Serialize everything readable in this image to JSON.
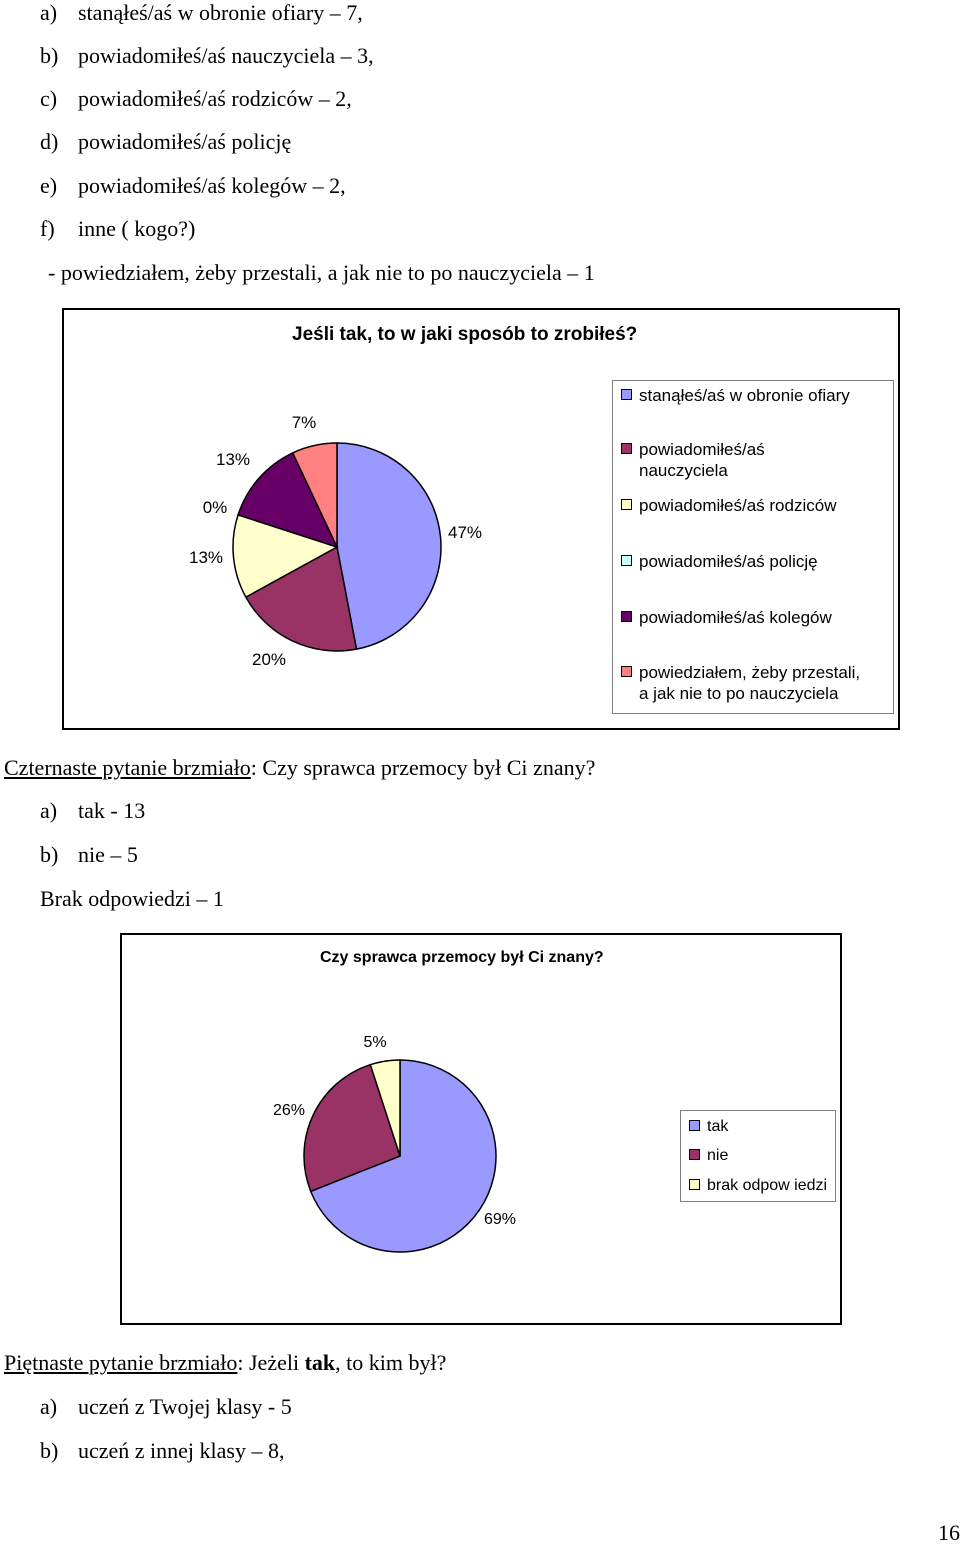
{
  "top_list": [
    {
      "label": "a)",
      "text": "stanąłeś/aś w obronie ofiary – 7,"
    },
    {
      "label": "b)",
      "text": "powiadomiłeś/aś nauczyciela – 3,"
    },
    {
      "label": "c)",
      "text": "powiadomiłeś/aś rodziców – 2,"
    },
    {
      "label": "d)",
      "text": "powiadomiłeś/aś policję"
    },
    {
      "label": "e)",
      "text": "powiadomiłeś/aś kolegów – 2,"
    },
    {
      "label": "f)",
      "text": "inne ( kogo?)"
    }
  ],
  "top_note": "- powiedziałem, żeby przestali, a jak nie to po nauczyciela – 1",
  "q14": {
    "lead": "Czternaste  pytanie brzmiało",
    "rest": ": Czy sprawca przemocy był Ci znany?",
    "answers": [
      {
        "label": "a)",
        "text": "tak - 13"
      },
      {
        "label": "b)",
        "text": "nie – 5"
      }
    ],
    "no_answer": "Brak odpowiedzi – 1"
  },
  "q15": {
    "lead": "Piętnaste  pytanie brzmiało",
    "rest_before": ": Jeżeli ",
    "bold": "tak",
    "rest_after": ", to kim był?",
    "answers": [
      {
        "label": "a)",
        "text": "uczeń z Twojej klasy - 5"
      },
      {
        "label": "b)",
        "text": "uczeń z innej klasy – 8,"
      }
    ]
  },
  "page_number": "16",
  "chart_data": [
    {
      "type": "pie",
      "title": "Jeśli tak, to w jaki sposób to zrobiłeś?",
      "legend_position": "right",
      "slices": [
        {
          "name": "stanąłeś/aś w obronie ofiary",
          "legend_lines": [
            "stanąłeś/aś w obronie ofiary"
          ],
          "value": 47,
          "label": "47%",
          "color": "#9999ff"
        },
        {
          "name": "powiadomiłeś/aś nauczyciela",
          "legend_lines": [
            "powiadomiłeś/aś",
            "nauczyciela"
          ],
          "value": 20,
          "label": "20%",
          "color": "#993366"
        },
        {
          "name": "powiadomiłeś/aś rodziców",
          "legend_lines": [
            "powiadomiłeś/aś rodziców"
          ],
          "value": 13,
          "label": "13%",
          "color": "#ffffcc"
        },
        {
          "name": "powiadomiłeś/aś policję",
          "legend_lines": [
            "powiadomiłeś/aś policję"
          ],
          "value": 0,
          "label": "0%",
          "color": "#ccffff"
        },
        {
          "name": "powiadomiłeś/aś kolegów",
          "legend_lines": [
            "powiadomiłeś/aś kolegów"
          ],
          "value": 13,
          "label": "13%",
          "color": "#660066"
        },
        {
          "name": "powiedziałem, żeby przestali, a jak nie to po nauczyciela",
          "legend_lines": [
            "powiedziałem, żeby przestali,",
            "a jak nie to po nauczyciela"
          ],
          "value": 7,
          "label": "7%",
          "color": "#ff8080"
        }
      ]
    },
    {
      "type": "pie",
      "title": "Czy sprawca przemocy był Ci znany?",
      "legend_position": "right",
      "slices": [
        {
          "name": "tak",
          "legend_lines": [
            "tak"
          ],
          "value": 69,
          "label": "69%",
          "color": "#9999ff"
        },
        {
          "name": "nie",
          "legend_lines": [
            "nie"
          ],
          "value": 26,
          "label": "26%",
          "color": "#993366"
        },
        {
          "name": "brak odpowiedzi",
          "legend_lines": [
            "brak odpow iedzi"
          ],
          "value": 5,
          "label": "5%",
          "color": "#ffffcc"
        }
      ]
    }
  ]
}
